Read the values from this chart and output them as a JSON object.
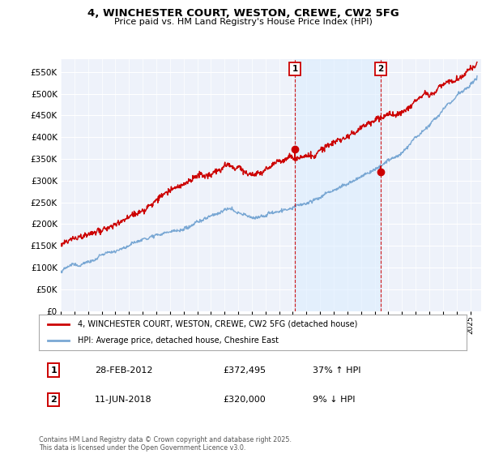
{
  "title_line1": "4, WINCHESTER COURT, WESTON, CREWE, CW2 5FG",
  "title_line2": "Price paid vs. HM Land Registry's House Price Index (HPI)",
  "ylim": [
    0,
    580000
  ],
  "yticks": [
    0,
    50000,
    100000,
    150000,
    200000,
    250000,
    300000,
    350000,
    400000,
    450000,
    500000,
    550000
  ],
  "xlim_start": 1995.0,
  "xlim_end": 2025.8,
  "transaction1_date": 2012.16,
  "transaction1_price": 372495,
  "transaction2_date": 2018.44,
  "transaction2_price": 320000,
  "hpi_line_color": "#7aa8d4",
  "hpi_fill_color": "#ddeeff",
  "price_line_color": "#cc0000",
  "vline_color": "#cc0000",
  "shade_color": "#ddeeff",
  "legend_label1": "4, WINCHESTER COURT, WESTON, CREWE, CW2 5FG (detached house)",
  "legend_label2": "HPI: Average price, detached house, Cheshire East",
  "table_row1": [
    "1",
    "28-FEB-2012",
    "£372,495",
    "37% ↑ HPI"
  ],
  "table_row2": [
    "2",
    "11-JUN-2018",
    "£320,000",
    "9% ↓ HPI"
  ],
  "footnote": "Contains HM Land Registry data © Crown copyright and database right 2025.\nThis data is licensed under the Open Government Licence v3.0.",
  "background_color": "#ffffff",
  "plot_bg_color": "#eef2fa"
}
